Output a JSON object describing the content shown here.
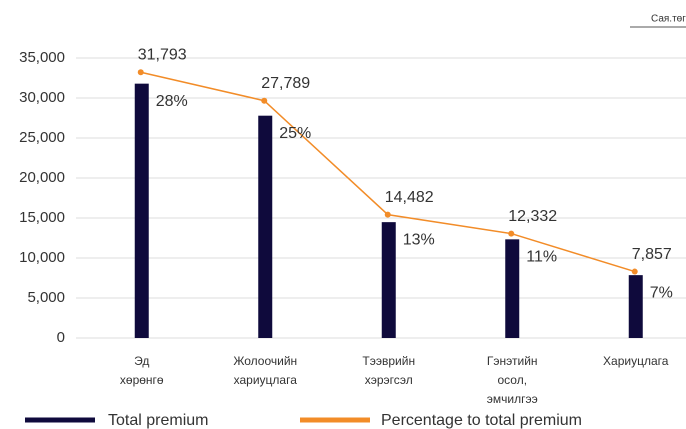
{
  "chart_data": {
    "type": "bar",
    "unit_note": "Сая.төгрөг",
    "categories": [
      [
        "Эд",
        "хөрөнгө"
      ],
      [
        "Жолоочийн",
        "хариуцлага"
      ],
      [
        "Тээврийн",
        "хэрэгсэл"
      ],
      [
        "Гэнэтийн",
        "осол,",
        "эмчилгээ"
      ],
      [
        "Хариуцлага"
      ]
    ],
    "series": [
      {
        "name": "Total premium",
        "color": "#0f0a3c",
        "type": "bar",
        "values": [
          31793,
          27789,
          14482,
          12332,
          7857
        ],
        "value_labels": [
          "31,793",
          "27,789",
          "14,482",
          "12,332",
          "7,857"
        ]
      },
      {
        "name": "Percentage to total premium",
        "color": "#f28c28",
        "type": "line",
        "axis": "y2",
        "values": [
          28,
          25,
          13,
          11,
          7
        ],
        "value_labels": [
          "28%",
          "25%",
          "13%",
          "11%",
          "7%"
        ]
      }
    ],
    "ylim": [
      0,
      35000
    ],
    "yticks": [
      0,
      {
        "value": 5000,
        "label": "5,000"
      },
      {
        "value": 10000,
        "label": "10,000"
      },
      {
        "value": 15000,
        "label": "15,000"
      },
      {
        "value": 20000,
        "label": "20,000"
      },
      {
        "value": 25000,
        "label": "25,000"
      },
      {
        "value": 30000,
        "label": "30,000"
      },
      {
        "value": 35000,
        "label": "35,000"
      }
    ],
    "y2lim": [
      0,
      29.5
    ],
    "grid": true
  }
}
